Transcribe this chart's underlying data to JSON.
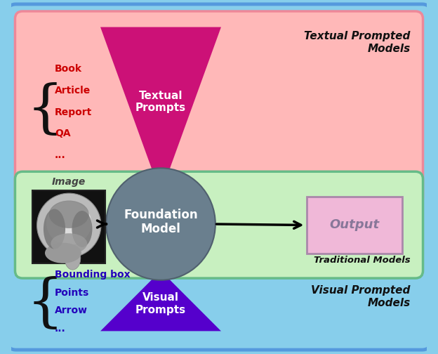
{
  "fig_width": 6.24,
  "fig_height": 5.04,
  "dpi": 100,
  "outer_bg": "#87CEEB",
  "pink_bg": "#FFB8B8",
  "green_bg": "#C8F0C0",
  "circle_color": "#6A7F8E",
  "textual_triangle_color": "#CC1177",
  "visual_triangle_color": "#5500CC",
  "output_box_color": "#F0B8D8",
  "output_box_edge": "#AA88AA",
  "textual_prompts_label": "Textual\nPrompts",
  "visual_prompts_label": "Visual\nPrompts",
  "foundation_model_label": "Foundation\nModel",
  "output_label": "Output",
  "image_label": "Image",
  "textual_prompted_models": "Textual Prompted\nModels",
  "visual_prompted_models": "Visual Prompted\nModels",
  "traditional_models": "Traditional Models",
  "book_items": [
    "Book",
    "Article",
    "Report",
    "QA",
    "..."
  ],
  "visual_items": [
    "Bounding box",
    "Points",
    "Arrow",
    "..."
  ],
  "text_color_red": "#CC0000",
  "text_color_blue": "#2200BB",
  "text_color_dark": "#111111"
}
